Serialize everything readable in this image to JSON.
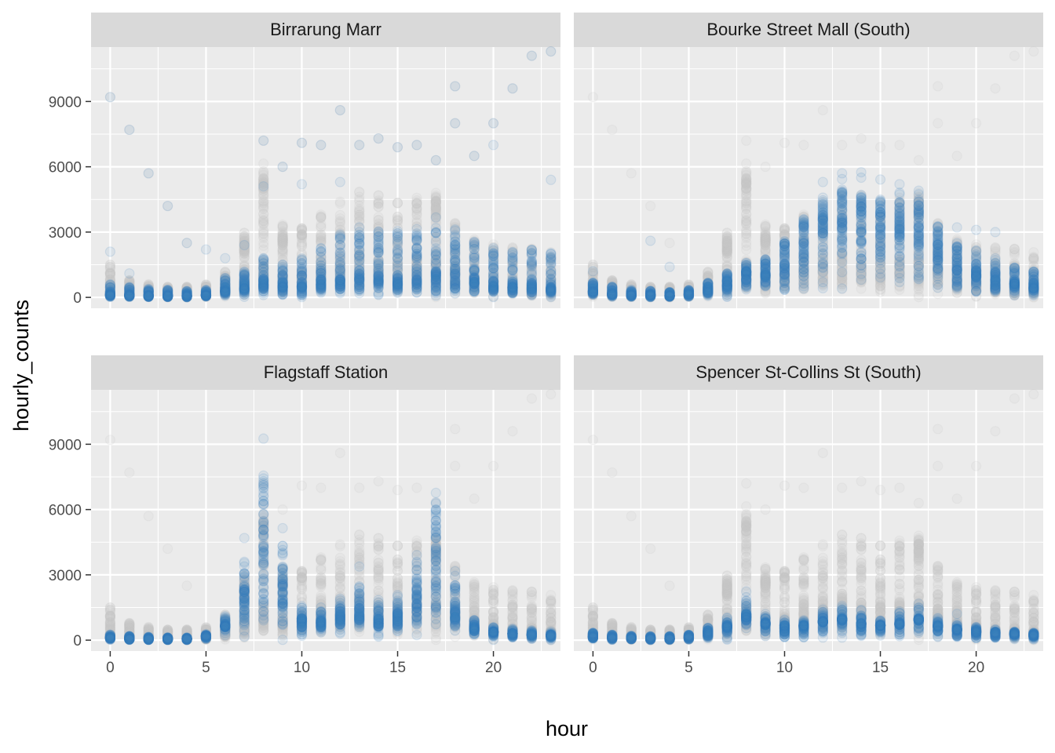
{
  "chart_data": {
    "type": "scatter",
    "facet_layout": "2x2",
    "xlabel": "hour",
    "ylabel": "hourly_counts",
    "xlim": [
      -1,
      23.5
    ],
    "ylim": [
      -500,
      11500
    ],
    "x_ticks": [
      0,
      5,
      10,
      15,
      20
    ],
    "y_ticks": [
      0,
      3000,
      6000,
      9000
    ],
    "grid": true,
    "legend": "none",
    "colors": {
      "highlight": "#3c7fbf",
      "background_points": "#c8c8c8",
      "panel": "#ebebeb",
      "strip": "#d9d9d9"
    },
    "background_series_note": "",
    "panels": [
      {
        "title": "Birrarung Marr",
        "typical": [
          [
            0,
            100
          ],
          [
            1,
            90
          ],
          [
            2,
            70
          ],
          [
            3,
            60
          ],
          [
            4,
            60
          ],
          [
            5,
            90
          ],
          [
            6,
            250
          ],
          [
            7,
            400
          ],
          [
            8,
            550
          ],
          [
            9,
            450
          ],
          [
            10,
            450
          ],
          [
            11,
            550
          ],
          [
            12,
            650
          ],
          [
            13,
            750
          ],
          [
            14,
            700
          ],
          [
            15,
            650
          ],
          [
            16,
            700
          ],
          [
            17,
            800
          ],
          [
            18,
            750
          ],
          [
            19,
            600
          ],
          [
            20,
            500
          ],
          [
            21,
            450
          ],
          [
            22,
            400
          ],
          [
            23,
            350
          ]
        ],
        "spread": [
          [
            0,
            600
          ],
          [
            1,
            500
          ],
          [
            2,
            400
          ],
          [
            3,
            350
          ],
          [
            4,
            300
          ],
          [
            5,
            350
          ],
          [
            6,
            900
          ],
          [
            7,
            1200
          ],
          [
            8,
            1800
          ],
          [
            9,
            1500
          ],
          [
            10,
            1800
          ],
          [
            11,
            2300
          ],
          [
            12,
            2900
          ],
          [
            13,
            3300
          ],
          [
            14,
            3100
          ],
          [
            15,
            3100
          ],
          [
            16,
            3300
          ],
          [
            17,
            3700
          ],
          [
            18,
            3200
          ],
          [
            19,
            2700
          ],
          [
            20,
            2300
          ],
          [
            21,
            2100
          ],
          [
            22,
            2300
          ],
          [
            23,
            2100
          ]
        ],
        "outliers": [
          [
            0,
            9200
          ],
          [
            0,
            2100
          ],
          [
            1,
            7700
          ],
          [
            1,
            1100
          ],
          [
            2,
            5700
          ],
          [
            3,
            4200
          ],
          [
            4,
            2500
          ],
          [
            5,
            2200
          ],
          [
            6,
            1800
          ],
          [
            7,
            2400
          ],
          [
            8,
            7200
          ],
          [
            8,
            5100
          ],
          [
            9,
            6000
          ],
          [
            10,
            7100
          ],
          [
            10,
            5200
          ],
          [
            11,
            7000
          ],
          [
            12,
            8600
          ],
          [
            12,
            5300
          ],
          [
            13,
            7000
          ],
          [
            14,
            7300
          ],
          [
            15,
            6900
          ],
          [
            16,
            7000
          ],
          [
            17,
            6300
          ],
          [
            18,
            9700
          ],
          [
            18,
            8000
          ],
          [
            19,
            6500
          ],
          [
            20,
            8000
          ],
          [
            20,
            7000
          ],
          [
            21,
            9600
          ],
          [
            22,
            11100
          ],
          [
            23,
            11300
          ],
          [
            23,
            5400
          ]
        ]
      },
      {
        "title": "Bourke Street Mall (South)",
        "typical": [
          [
            0,
            250
          ],
          [
            1,
            150
          ],
          [
            2,
            100
          ],
          [
            3,
            80
          ],
          [
            4,
            70
          ],
          [
            5,
            120
          ],
          [
            6,
            250
          ],
          [
            7,
            500
          ],
          [
            8,
            800
          ],
          [
            9,
            900
          ],
          [
            10,
            1300
          ],
          [
            11,
            2000
          ],
          [
            12,
            2800
          ],
          [
            13,
            3100
          ],
          [
            14,
            2900
          ],
          [
            15,
            2800
          ],
          [
            16,
            2700
          ],
          [
            17,
            2500
          ],
          [
            18,
            1800
          ],
          [
            19,
            1200
          ],
          [
            20,
            900
          ],
          [
            21,
            700
          ],
          [
            22,
            500
          ],
          [
            23,
            400
          ]
        ],
        "spread": [
          [
            0,
            700
          ],
          [
            1,
            500
          ],
          [
            2,
            350
          ],
          [
            3,
            300
          ],
          [
            4,
            250
          ],
          [
            5,
            350
          ],
          [
            6,
            700
          ],
          [
            7,
            1100
          ],
          [
            8,
            1600
          ],
          [
            9,
            1800
          ],
          [
            10,
            2600
          ],
          [
            11,
            3600
          ],
          [
            12,
            4500
          ],
          [
            13,
            5000
          ],
          [
            14,
            4800
          ],
          [
            15,
            4500
          ],
          [
            16,
            4500
          ],
          [
            17,
            4400
          ],
          [
            18,
            3300
          ],
          [
            19,
            2600
          ],
          [
            20,
            2200
          ],
          [
            21,
            1800
          ],
          [
            22,
            1400
          ],
          [
            23,
            1200
          ]
        ],
        "outliers": [
          [
            0,
            1200
          ],
          [
            3,
            2600
          ],
          [
            4,
            1400
          ],
          [
            12,
            5300
          ],
          [
            13,
            5700
          ],
          [
            14,
            5500
          ],
          [
            16,
            5200
          ],
          [
            17,
            4900
          ],
          [
            20,
            3100
          ],
          [
            21,
            3000
          ]
        ]
      },
      {
        "title": "Flagstaff Station",
        "typical": [
          [
            0,
            100
          ],
          [
            1,
            60
          ],
          [
            2,
            50
          ],
          [
            3,
            40
          ],
          [
            4,
            50
          ],
          [
            5,
            150
          ],
          [
            6,
            700
          ],
          [
            7,
            2300
          ],
          [
            8,
            5000
          ],
          [
            9,
            2600
          ],
          [
            10,
            1000
          ],
          [
            11,
            900
          ],
          [
            12,
            1200
          ],
          [
            13,
            1500
          ],
          [
            14,
            1000
          ],
          [
            15,
            1300
          ],
          [
            16,
            2400
          ],
          [
            17,
            4000
          ],
          [
            18,
            1700
          ],
          [
            19,
            600
          ],
          [
            20,
            400
          ],
          [
            21,
            300
          ],
          [
            22,
            250
          ],
          [
            23,
            200
          ]
        ],
        "spread": [
          [
            0,
            250
          ],
          [
            1,
            200
          ],
          [
            2,
            150
          ],
          [
            3,
            120
          ],
          [
            4,
            120
          ],
          [
            5,
            250
          ],
          [
            6,
            600
          ],
          [
            7,
            700
          ],
          [
            8,
            900
          ],
          [
            9,
            700
          ],
          [
            10,
            600
          ],
          [
            11,
            550
          ],
          [
            12,
            700
          ],
          [
            13,
            800
          ],
          [
            14,
            600
          ],
          [
            15,
            600
          ],
          [
            16,
            600
          ],
          [
            17,
            700
          ],
          [
            18,
            600
          ],
          [
            19,
            400
          ],
          [
            20,
            350
          ],
          [
            21,
            300
          ],
          [
            22,
            250
          ],
          [
            23,
            250
          ]
        ],
        "outliers": [
          [
            7,
            3600
          ],
          [
            8,
            6400
          ],
          [
            8,
            5800
          ],
          [
            9,
            3300
          ],
          [
            11,
            1500
          ],
          [
            12,
            1900
          ],
          [
            13,
            2400
          ],
          [
            16,
            3200
          ],
          [
            17,
            5500
          ],
          [
            17,
            6000
          ],
          [
            18,
            2400
          ]
        ]
      },
      {
        "title": "Spencer St-Collins St (South)",
        "typical": [
          [
            0,
            150
          ],
          [
            1,
            100
          ],
          [
            2,
            80
          ],
          [
            3,
            60
          ],
          [
            4,
            60
          ],
          [
            5,
            100
          ],
          [
            6,
            250
          ],
          [
            7,
            550
          ],
          [
            8,
            1200
          ],
          [
            9,
            700
          ],
          [
            10,
            500
          ],
          [
            11,
            600
          ],
          [
            12,
            800
          ],
          [
            13,
            900
          ],
          [
            14,
            700
          ],
          [
            15,
            650
          ],
          [
            16,
            700
          ],
          [
            17,
            1000
          ],
          [
            18,
            600
          ],
          [
            19,
            450
          ],
          [
            20,
            350
          ],
          [
            21,
            300
          ],
          [
            22,
            250
          ],
          [
            23,
            200
          ]
        ],
        "spread": [
          [
            0,
            350
          ],
          [
            1,
            250
          ],
          [
            2,
            200
          ],
          [
            3,
            180
          ],
          [
            4,
            180
          ],
          [
            5,
            250
          ],
          [
            6,
            600
          ],
          [
            7,
            700
          ],
          [
            8,
            900
          ],
          [
            9,
            800
          ],
          [
            10,
            700
          ],
          [
            11,
            700
          ],
          [
            12,
            900
          ],
          [
            13,
            1000
          ],
          [
            14,
            800
          ],
          [
            15,
            700
          ],
          [
            16,
            800
          ],
          [
            17,
            900
          ],
          [
            18,
            700
          ],
          [
            19,
            550
          ],
          [
            20,
            450
          ],
          [
            21,
            400
          ],
          [
            22,
            350
          ],
          [
            23,
            300
          ]
        ],
        "outliers": [
          [
            8,
            1700
          ],
          [
            12,
            1400
          ],
          [
            13,
            1500
          ],
          [
            17,
            1500
          ]
        ]
      }
    ],
    "background": {
      "typical": [
        [
          0,
          200
        ],
        [
          1,
          100
        ],
        [
          2,
          70
        ],
        [
          3,
          60
        ],
        [
          4,
          60
        ],
        [
          5,
          100
        ],
        [
          6,
          300
        ],
        [
          7,
          600
        ],
        [
          8,
          900
        ],
        [
          9,
          700
        ],
        [
          10,
          800
        ],
        [
          11,
          900
        ],
        [
          12,
          1100
        ],
        [
          13,
          1200
        ],
        [
          14,
          1100
        ],
        [
          15,
          1100
        ],
        [
          16,
          1200
        ],
        [
          17,
          1400
        ],
        [
          18,
          1000
        ],
        [
          19,
          700
        ],
        [
          20,
          500
        ],
        [
          21,
          400
        ],
        [
          22,
          350
        ],
        [
          23,
          300
        ]
      ],
      "spread": [
        [
          0,
          1500
        ],
        [
          1,
          800
        ],
        [
          2,
          600
        ],
        [
          3,
          500
        ],
        [
          4,
          500
        ],
        [
          5,
          600
        ],
        [
          6,
          1200
        ],
        [
          7,
          3000
        ],
        [
          8,
          5500
        ],
        [
          9,
          3400
        ],
        [
          10,
          3200
        ],
        [
          11,
          3800
        ],
        [
          12,
          4500
        ],
        [
          13,
          5000
        ],
        [
          14,
          4800
        ],
        [
          15,
          4600
        ],
        [
          16,
          4600
        ],
        [
          17,
          4800
        ],
        [
          18,
          3500
        ],
        [
          19,
          2800
        ],
        [
          20,
          2500
        ],
        [
          21,
          2300
        ],
        [
          22,
          2300
        ],
        [
          23,
          2100
        ]
      ],
      "clusters": [
        [
          7,
          2300
        ],
        [
          8,
          5000
        ],
        [
          9,
          2600
        ],
        [
          17,
          4000
        ]
      ],
      "outliers": [
        [
          0,
          9200
        ],
        [
          1,
          7700
        ],
        [
          2,
          5700
        ],
        [
          3,
          4200
        ],
        [
          4,
          2500
        ],
        [
          8,
          7200
        ],
        [
          9,
          6000
        ],
        [
          10,
          7100
        ],
        [
          11,
          7000
        ],
        [
          12,
          8600
        ],
        [
          13,
          7000
        ],
        [
          14,
          7300
        ],
        [
          15,
          6900
        ],
        [
          16,
          7000
        ],
        [
          17,
          6300
        ],
        [
          18,
          9700
        ],
        [
          18,
          8000
        ],
        [
          19,
          6500
        ],
        [
          20,
          8000
        ],
        [
          21,
          9600
        ],
        [
          22,
          11100
        ],
        [
          23,
          11300
        ]
      ]
    }
  }
}
